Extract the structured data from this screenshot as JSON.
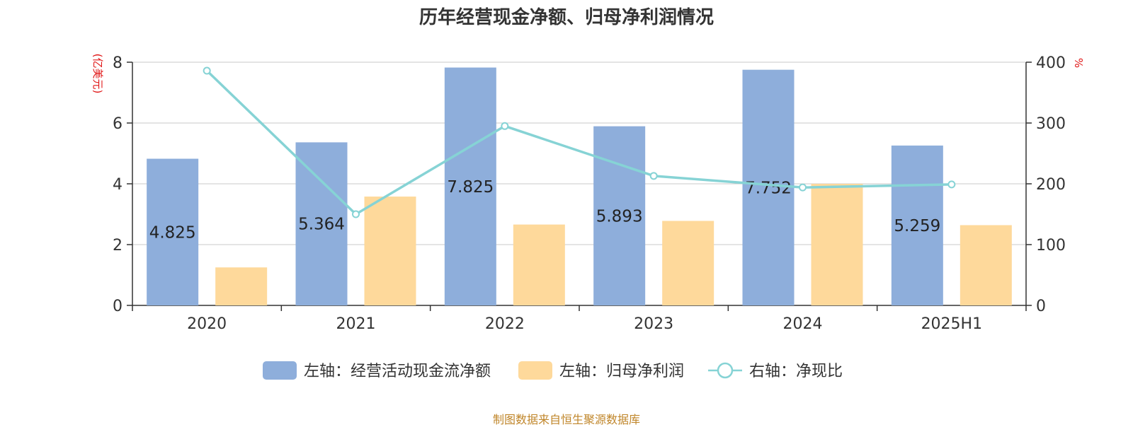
{
  "chart_data": {
    "type": "bar",
    "title": "历年经营现金净额、归母净利润情况",
    "categories": [
      "2020",
      "2021",
      "2022",
      "2023",
      "2024",
      "2025H1"
    ],
    "y_left": {
      "label": "(亿美元)",
      "range": [
        0,
        8
      ],
      "ticks": [
        "0",
        "2",
        "4",
        "6",
        "8"
      ]
    },
    "y_right": {
      "label": "%",
      "range": [
        0,
        400
      ],
      "ticks": [
        "0",
        "100",
        "200",
        "300",
        "400"
      ]
    },
    "series": [
      {
        "name": "左轴：经营活动现金流净额",
        "axis": "left",
        "kind": "bar",
        "color": "#8eaedb",
        "values": [
          4.825,
          5.364,
          7.825,
          5.893,
          7.752,
          5.259
        ],
        "data_labels": [
          "4.825",
          "5.364",
          "7.825",
          "5.893",
          "7.752",
          "5.259"
        ]
      },
      {
        "name": "左轴：归母净利润",
        "axis": "left",
        "kind": "bar",
        "color": "#fed99b",
        "values": [
          1.25,
          3.58,
          2.66,
          2.78,
          4.0,
          2.64
        ]
      },
      {
        "name": "右轴：净现比",
        "axis": "right",
        "kind": "line",
        "color": "#86d3d5",
        "values": [
          386,
          150,
          295,
          213,
          194,
          199
        ]
      }
    ],
    "grid": true,
    "legend_position": "bottom"
  },
  "footer": "制图数据来自恒生聚源数据库"
}
